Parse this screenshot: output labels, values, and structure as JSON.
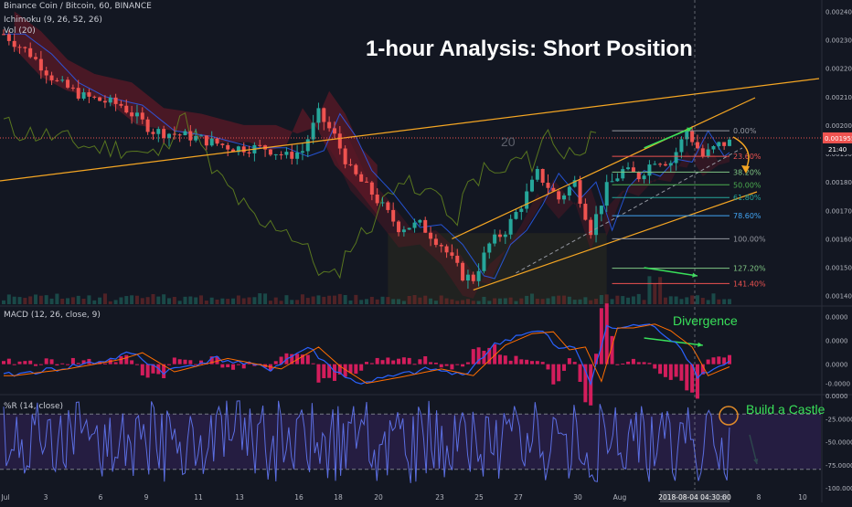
{
  "header": {
    "symbol_line": "Binance Coin / Bitcoin, 60, BINANCE",
    "ichimoku_line": "Ichimoku (9, 26, 52, 26)",
    "vol_line": "Vol (20)",
    "title": "1-hour Analysis: Short Position"
  },
  "watermark": "20",
  "annotations": {
    "divergence": "Divergence",
    "castle": "Build a Castle"
  },
  "colors": {
    "background": "#131722",
    "up": "#26a69a",
    "down": "#ef5350",
    "trendline": "#f5a623",
    "annotation_green": "#39e05a",
    "macd_line": "#2962ff",
    "signal_line": "#ff6d00",
    "histogram": "#e91e63",
    "wr_line": "#5b6ee1",
    "wr_band": "#2a1f4a"
  },
  "chart_data": [
    {
      "type": "candlestick",
      "title": "Binance Coin / Bitcoin, 60, BINANCE",
      "ylim": [
        0.00137,
        0.00244
      ],
      "y_axis_ticks": [
        "0.00240000",
        "0.00230000",
        "0.00220000",
        "0.00210000",
        "0.00200000",
        "0.00190000",
        "0.00180000",
        "0.00170000",
        "0.00160000",
        "0.00150000",
        "0.00140000"
      ],
      "y_axis_values": [
        0.0024,
        0.0023,
        0.0022,
        0.0021,
        0.002,
        0.0019,
        0.0018,
        0.0017,
        0.0016,
        0.0015,
        0.0014
      ],
      "x_axis_ticks": [
        "Jul",
        "3",
        "6",
        "9",
        "11",
        "13",
        "16",
        "18",
        "20",
        "23",
        "25",
        "27",
        "30",
        "Aug",
        "2018-08-04 04:30:00",
        "6",
        "8",
        "10"
      ],
      "current_price": "0.00195530",
      "countdown": "21:40",
      "price_path": [
        {
          "x": 0,
          "y": 0.00232
        },
        {
          "x": 5,
          "y": 0.00225
        },
        {
          "x": 10,
          "y": 0.00215
        },
        {
          "x": 15,
          "y": 0.0021
        },
        {
          "x": 22,
          "y": 0.00207
        },
        {
          "x": 28,
          "y": 0.00198
        },
        {
          "x": 35,
          "y": 0.00196
        },
        {
          "x": 43,
          "y": 0.00192
        },
        {
          "x": 49,
          "y": 0.00192
        },
        {
          "x": 53,
          "y": 0.00189
        },
        {
          "x": 56,
          "y": 0.00191
        },
        {
          "x": 59,
          "y": 0.00204
        },
        {
          "x": 62,
          "y": 0.00196
        },
        {
          "x": 65,
          "y": 0.00184
        },
        {
          "x": 69,
          "y": 0.00176
        },
        {
          "x": 74,
          "y": 0.00164
        },
        {
          "x": 78,
          "y": 0.00165
        },
        {
          "x": 82,
          "y": 0.00158
        },
        {
          "x": 86,
          "y": 0.00147
        },
        {
          "x": 88,
          "y": 0.00146
        },
        {
          "x": 91,
          "y": 0.00158
        },
        {
          "x": 94,
          "y": 0.00163
        },
        {
          "x": 97,
          "y": 0.00172
        },
        {
          "x": 100,
          "y": 0.00183
        },
        {
          "x": 104,
          "y": 0.00174
        },
        {
          "x": 107,
          "y": 0.0018
        },
        {
          "x": 110,
          "y": 0.00163
        },
        {
          "x": 113,
          "y": 0.00178
        },
        {
          "x": 116,
          "y": 0.00184
        },
        {
          "x": 119,
          "y": 0.00182
        },
        {
          "x": 122,
          "y": 0.00188
        },
        {
          "x": 125,
          "y": 0.00187
        },
        {
          "x": 128,
          "y": 0.00198
        },
        {
          "x": 131,
          "y": 0.00189
        },
        {
          "x": 134,
          "y": 0.00193
        },
        {
          "x": 136,
          "y": 0.00194
        }
      ],
      "fibonacci": [
        {
          "label": "0.00%",
          "color": "#9598a1"
        },
        {
          "label": "23.60%",
          "color": "#ef5350"
        },
        {
          "label": "38.20%",
          "color": "#81c784"
        },
        {
          "label": "50.00%",
          "color": "#4caf50"
        },
        {
          "label": "61.80%",
          "color": "#26a69a"
        },
        {
          "label": "78.60%",
          "color": "#42a5f5"
        },
        {
          "label": "100.00%",
          "color": "#9598a1"
        },
        {
          "label": "127.20%",
          "color": "#81c784"
        },
        {
          "label": "141.40%",
          "color": "#ef5350"
        }
      ],
      "fibonacci_high": 0.00198,
      "fibonacci_low": 0.0016
    },
    {
      "type": "line",
      "title": "MACD (12, 26, close, 9)",
      "ylim": [
        -3e-05,
        6e-05
      ],
      "y_axis_ticks": [
        "0.0000",
        "0.0000",
        "0.0000",
        "-0.0000"
      ],
      "y_axis_values": [
        5e-05,
        2.5e-05,
        0,
        -2e-05
      ],
      "series": [
        {
          "name": "MACD",
          "points": [
            {
              "x": 0,
              "y": -1.2e-05
            },
            {
              "x": 10,
              "y": -5e-06
            },
            {
              "x": 20,
              "y": 5e-06
            },
            {
              "x": 24,
              "y": 1.2e-05
            },
            {
              "x": 30,
              "y": -8e-06
            },
            {
              "x": 40,
              "y": 6e-06
            },
            {
              "x": 50,
              "y": -5e-06
            },
            {
              "x": 57,
              "y": 1.8e-05
            },
            {
              "x": 61,
              "y": -2e-06
            },
            {
              "x": 66,
              "y": -2e-05
            },
            {
              "x": 72,
              "y": -1.4e-05
            },
            {
              "x": 80,
              "y": -5e-06
            },
            {
              "x": 86,
              "y": -1.2e-05
            },
            {
              "x": 92,
              "y": 2e-05
            },
            {
              "x": 97,
              "y": 3.2e-05
            },
            {
              "x": 101,
              "y": 3.4e-05
            },
            {
              "x": 104,
              "y": 1.5e-05
            },
            {
              "x": 107,
              "y": 1.8e-05
            },
            {
              "x": 110,
              "y": -1.8e-05
            },
            {
              "x": 113,
              "y": 3.8e-05
            },
            {
              "x": 116,
              "y": 3.8e-05
            },
            {
              "x": 120,
              "y": 4.2e-05
            },
            {
              "x": 123,
              "y": 3.5e-05
            },
            {
              "x": 127,
              "y": 1.8e-05
            },
            {
              "x": 130,
              "y": -1.2e-05
            },
            {
              "x": 133,
              "y": -5e-06
            },
            {
              "x": 136,
              "y": 2e-06
            }
          ]
        }
      ]
    },
    {
      "type": "line",
      "title": "%R (14, close)",
      "ylim": [
        -100,
        0
      ],
      "y_axis_ticks": [
        "0.0000",
        "-25.0000",
        "-50.0000",
        "-75.0000",
        "-100.0000"
      ],
      "y_axis_values": [
        0,
        -25,
        -50,
        -75,
        -100
      ],
      "bands": [
        -20,
        -80
      ]
    }
  ]
}
